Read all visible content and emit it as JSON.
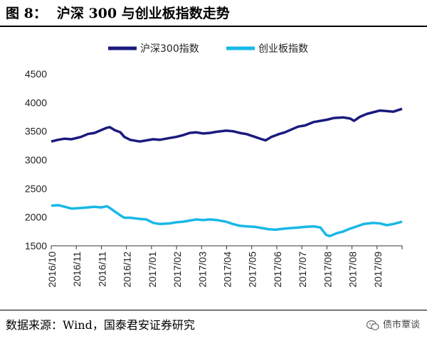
{
  "figure": {
    "number": "图 8：",
    "title": "沪深 300 与创业板指数走势"
  },
  "source": "数据来源：Wind，国泰君安证券研究",
  "watermark": "债市覃谈",
  "chart_data": {
    "type": "line",
    "title": "",
    "xlabel": "",
    "ylabel": "",
    "ylim": [
      1500,
      4500
    ],
    "yticks": [
      1500,
      2000,
      2500,
      3000,
      3500,
      4000,
      4500
    ],
    "grid": false,
    "legend_position": "top",
    "x_tick_labels": [
      "2016/10",
      "2016/11",
      "2016/11",
      "2016/12",
      "2017/01",
      "2017/02",
      "2017/03",
      "2017/04",
      "2017/05",
      "2017/06",
      "2017/07",
      "2017/08",
      "2017/08",
      "2017/09"
    ],
    "x_range": [
      "2016-10-01",
      "2017-10-01"
    ],
    "series": [
      {
        "name": "沪深300指数",
        "color": "#1a1a7e",
        "points": [
          [
            "2016-10-01",
            3320
          ],
          [
            "2016-10-08",
            3350
          ],
          [
            "2016-10-15",
            3370
          ],
          [
            "2016-10-22",
            3360
          ],
          [
            "2016-11-01",
            3400
          ],
          [
            "2016-11-08",
            3450
          ],
          [
            "2016-11-15",
            3470
          ],
          [
            "2016-11-22",
            3520
          ],
          [
            "2016-11-28",
            3560
          ],
          [
            "2016-12-01",
            3570
          ],
          [
            "2016-12-06",
            3520
          ],
          [
            "2016-12-12",
            3480
          ],
          [
            "2016-12-16",
            3400
          ],
          [
            "2016-12-22",
            3350
          ],
          [
            "2017-01-01",
            3320
          ],
          [
            "2017-01-08",
            3340
          ],
          [
            "2017-01-15",
            3360
          ],
          [
            "2017-01-22",
            3350
          ],
          [
            "2017-02-01",
            3380
          ],
          [
            "2017-02-08",
            3400
          ],
          [
            "2017-02-15",
            3430
          ],
          [
            "2017-02-22",
            3470
          ],
          [
            "2017-03-01",
            3480
          ],
          [
            "2017-03-08",
            3460
          ],
          [
            "2017-03-15",
            3470
          ],
          [
            "2017-03-22",
            3490
          ],
          [
            "2017-04-01",
            3510
          ],
          [
            "2017-04-08",
            3500
          ],
          [
            "2017-04-15",
            3470
          ],
          [
            "2017-04-22",
            3450
          ],
          [
            "2017-05-01",
            3400
          ],
          [
            "2017-05-08",
            3360
          ],
          [
            "2017-05-12",
            3340
          ],
          [
            "2017-05-18",
            3400
          ],
          [
            "2017-05-26",
            3450
          ],
          [
            "2017-06-01",
            3480
          ],
          [
            "2017-06-08",
            3530
          ],
          [
            "2017-06-15",
            3580
          ],
          [
            "2017-06-22",
            3600
          ],
          [
            "2017-07-01",
            3660
          ],
          [
            "2017-07-08",
            3680
          ],
          [
            "2017-07-15",
            3700
          ],
          [
            "2017-07-22",
            3730
          ],
          [
            "2017-08-01",
            3740
          ],
          [
            "2017-08-08",
            3720
          ],
          [
            "2017-08-12",
            3680
          ],
          [
            "2017-08-18",
            3750
          ],
          [
            "2017-08-25",
            3800
          ],
          [
            "2017-09-01",
            3830
          ],
          [
            "2017-09-08",
            3860
          ],
          [
            "2017-09-15",
            3850
          ],
          [
            "2017-09-22",
            3840
          ],
          [
            "2017-10-01",
            3890
          ]
        ]
      },
      {
        "name": "创业板指数",
        "color": "#19b8e6",
        "points": [
          [
            "2016-10-01",
            2200
          ],
          [
            "2016-10-08",
            2210
          ],
          [
            "2016-10-15",
            2180
          ],
          [
            "2016-10-22",
            2150
          ],
          [
            "2016-11-01",
            2160
          ],
          [
            "2016-11-08",
            2170
          ],
          [
            "2016-11-15",
            2180
          ],
          [
            "2016-11-22",
            2170
          ],
          [
            "2016-11-28",
            2190
          ],
          [
            "2016-12-01",
            2160
          ],
          [
            "2016-12-06",
            2100
          ],
          [
            "2016-12-12",
            2030
          ],
          [
            "2016-12-16",
            1990
          ],
          [
            "2016-12-22",
            1990
          ],
          [
            "2017-01-01",
            1970
          ],
          [
            "2017-01-08",
            1960
          ],
          [
            "2017-01-15",
            1900
          ],
          [
            "2017-01-22",
            1880
          ],
          [
            "2017-02-01",
            1890
          ],
          [
            "2017-02-08",
            1910
          ],
          [
            "2017-02-15",
            1920
          ],
          [
            "2017-02-22",
            1940
          ],
          [
            "2017-03-01",
            1960
          ],
          [
            "2017-03-08",
            1950
          ],
          [
            "2017-03-15",
            1960
          ],
          [
            "2017-03-22",
            1950
          ],
          [
            "2017-04-01",
            1920
          ],
          [
            "2017-04-08",
            1880
          ],
          [
            "2017-04-15",
            1850
          ],
          [
            "2017-04-22",
            1840
          ],
          [
            "2017-05-01",
            1830
          ],
          [
            "2017-05-08",
            1810
          ],
          [
            "2017-05-15",
            1790
          ],
          [
            "2017-05-22",
            1780
          ],
          [
            "2017-06-01",
            1800
          ],
          [
            "2017-06-08",
            1810
          ],
          [
            "2017-06-15",
            1820
          ],
          [
            "2017-06-22",
            1830
          ],
          [
            "2017-07-01",
            1840
          ],
          [
            "2017-07-08",
            1820
          ],
          [
            "2017-07-14",
            1690
          ],
          [
            "2017-07-18",
            1670
          ],
          [
            "2017-07-25",
            1720
          ],
          [
            "2017-08-01",
            1750
          ],
          [
            "2017-08-08",
            1800
          ],
          [
            "2017-08-15",
            1840
          ],
          [
            "2017-08-22",
            1880
          ],
          [
            "2017-09-01",
            1900
          ],
          [
            "2017-09-08",
            1890
          ],
          [
            "2017-09-15",
            1860
          ],
          [
            "2017-09-22",
            1880
          ],
          [
            "2017-10-01",
            1920
          ]
        ]
      }
    ]
  }
}
